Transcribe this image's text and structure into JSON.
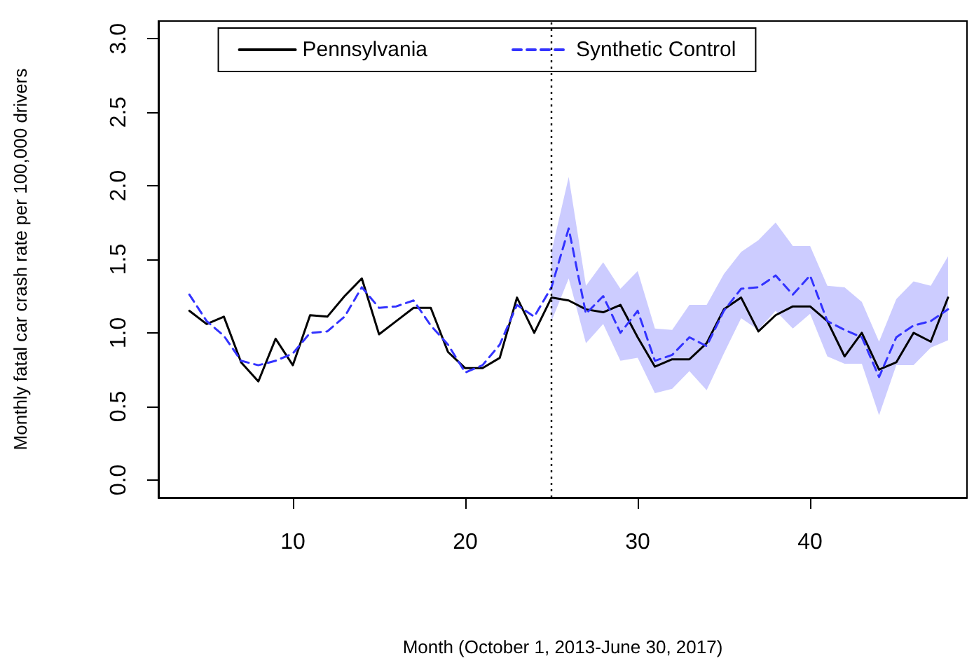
{
  "chart_data": {
    "type": "line",
    "xlabel": "Month (October 1, 2013-June 30, 2017)",
    "ylabel": "Monthly fatal car crash rate per 100,000 drivers",
    "x": [
      4,
      5,
      6,
      7,
      8,
      9,
      10,
      11,
      12,
      13,
      14,
      15,
      16,
      17,
      18,
      19,
      20,
      21,
      22,
      23,
      24,
      25,
      26,
      27,
      28,
      29,
      30,
      31,
      32,
      33,
      34,
      35,
      36,
      37,
      38,
      39,
      40,
      41,
      42,
      43,
      44,
      45,
      46,
      47,
      48
    ],
    "series": [
      {
        "name": "Pennsylvania",
        "color": "#000000",
        "line_style": "solid",
        "values": [
          1.15,
          1.06,
          1.11,
          0.8,
          0.67,
          0.96,
          0.78,
          1.12,
          1.11,
          1.25,
          1.37,
          0.99,
          1.08,
          1.17,
          1.17,
          0.87,
          0.76,
          0.76,
          0.83,
          1.24,
          1.0,
          1.24,
          1.22,
          1.16,
          1.14,
          1.19,
          0.97,
          0.77,
          0.82,
          0.82,
          0.93,
          1.16,
          1.24,
          1.01,
          1.12,
          1.18,
          1.18,
          1.08,
          0.84,
          1.0,
          0.75,
          0.8,
          1.0,
          0.94,
          1.24
        ]
      },
      {
        "name": "Synthetic Control",
        "color": "#3333ff",
        "line_style": "dashed",
        "values": [
          1.26,
          1.08,
          0.98,
          0.81,
          0.78,
          0.81,
          0.86,
          1.0,
          1.01,
          1.11,
          1.31,
          1.17,
          1.18,
          1.22,
          1.05,
          0.92,
          0.73,
          0.78,
          0.92,
          1.19,
          1.11,
          1.31,
          1.71,
          1.13,
          1.25,
          1.0,
          1.15,
          0.81,
          0.85,
          0.97,
          0.91,
          1.15,
          1.3,
          1.31,
          1.39,
          1.26,
          1.39,
          1.08,
          1.02,
          0.97,
          0.7,
          0.97,
          1.05,
          1.08,
          1.16
        ],
        "lower": [
          null,
          null,
          null,
          null,
          null,
          null,
          null,
          null,
          null,
          null,
          null,
          null,
          null,
          null,
          null,
          null,
          null,
          null,
          null,
          null,
          null,
          1.08,
          1.37,
          0.93,
          1.06,
          0.81,
          0.83,
          0.59,
          0.62,
          0.74,
          0.61,
          0.86,
          1.1,
          1.02,
          1.15,
          1.03,
          1.13,
          0.84,
          0.79,
          0.79,
          0.44,
          0.78,
          0.78,
          0.9,
          0.95
        ],
        "upper": [
          null,
          null,
          null,
          null,
          null,
          null,
          null,
          null,
          null,
          null,
          null,
          null,
          null,
          null,
          null,
          null,
          null,
          null,
          null,
          null,
          null,
          1.55,
          2.06,
          1.32,
          1.48,
          1.3,
          1.42,
          1.03,
          1.02,
          1.19,
          1.19,
          1.4,
          1.55,
          1.63,
          1.75,
          1.59,
          1.59,
          1.32,
          1.31,
          1.21,
          0.94,
          1.23,
          1.35,
          1.32,
          1.52
        ]
      }
    ],
    "xlim": [
      2.2,
      49.1
    ],
    "xticks": [
      10,
      20,
      30,
      40
    ],
    "ylim": [
      -0.12,
      3.12
    ],
    "yticks": [
      {
        "value": 0,
        "label": "0.0"
      },
      {
        "value": 0.5,
        "label": "0.5"
      },
      {
        "value": 1,
        "label": "1.0"
      },
      {
        "value": 1.5,
        "label": "1.5"
      },
      {
        "value": 2,
        "label": "2.0"
      },
      {
        "value": 2.5,
        "label": "2.5"
      },
      {
        "value": 3,
        "label": "3.0"
      }
    ],
    "ref_lines": [
      {
        "axis": "x",
        "value": 25,
        "line_style": "dotted",
        "color": "#000000"
      }
    ],
    "legend": "top",
    "grid": false,
    "marker": "none"
  }
}
